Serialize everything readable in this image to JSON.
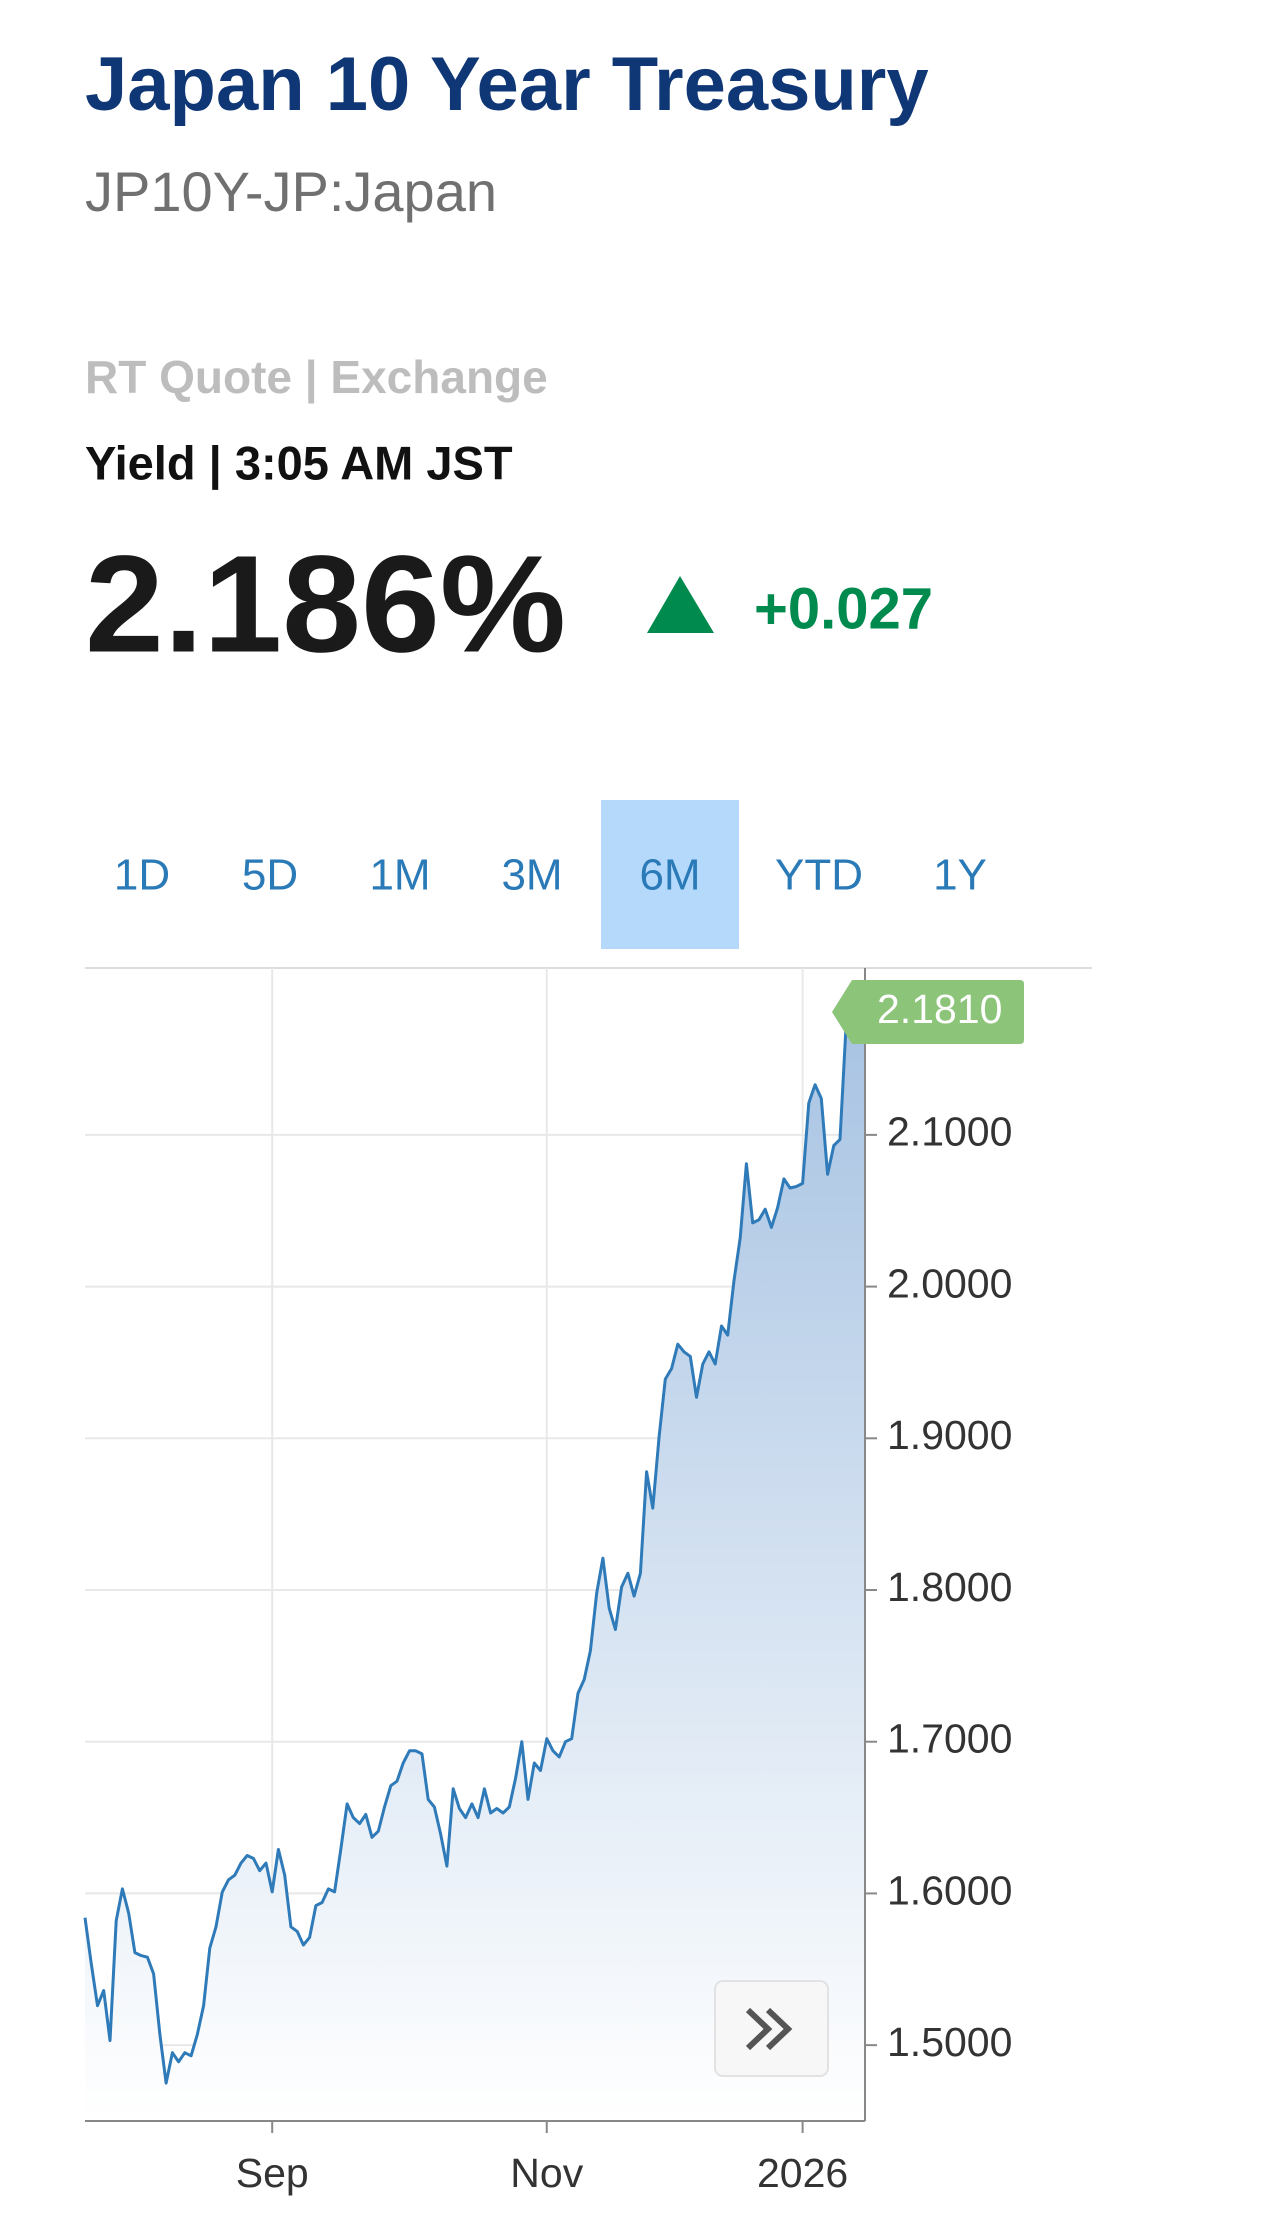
{
  "header": {
    "title": "Japan 10 Year Treasury",
    "symbol": "JP10Y-JP:Japan",
    "source": "RT Quote | Exchange",
    "timestamp": "Yield | 3:05 AM JST",
    "price": "2.186%",
    "change": "+0.027"
  },
  "tabs": {
    "items": [
      "1D",
      "5D",
      "1M",
      "3M",
      "6M",
      "YTD",
      "1Y"
    ],
    "active": "6M"
  },
  "chart_data": {
    "type": "line",
    "color": "#2f7ab8",
    "grid": true,
    "xlim": [
      0,
      125
    ],
    "xticks": [
      {
        "value": 30,
        "label": "Sep"
      },
      {
        "value": 74,
        "label": "Nov"
      },
      {
        "value": 115,
        "label": "2026"
      }
    ],
    "ylim": [
      1.45,
      2.21
    ],
    "yticks": [
      {
        "value": 1.5,
        "label": "1.5000"
      },
      {
        "value": 1.6,
        "label": "1.6000"
      },
      {
        "value": 1.7,
        "label": "1.7000"
      },
      {
        "value": 1.8,
        "label": "1.8000"
      },
      {
        "value": 1.9,
        "label": "1.9000"
      },
      {
        "value": 2.0,
        "label": "2.0000"
      },
      {
        "value": 2.1,
        "label": "2.1000"
      }
    ],
    "last_label": {
      "value": 2.181,
      "label": "2.1810"
    },
    "values": [
      1.584,
      1.554,
      1.526,
      1.536,
      1.503,
      1.582,
      1.603,
      1.587,
      1.561,
      1.559,
      1.558,
      1.547,
      1.507,
      1.475,
      1.495,
      1.489,
      1.495,
      1.493,
      1.507,
      1.526,
      1.564,
      1.578,
      1.601,
      1.609,
      1.612,
      1.62,
      1.625,
      1.623,
      1.615,
      1.62,
      1.601,
      1.629,
      1.612,
      1.578,
      1.575,
      1.566,
      1.571,
      1.592,
      1.594,
      1.603,
      1.601,
      1.629,
      1.659,
      1.65,
      1.646,
      1.652,
      1.637,
      1.641,
      1.657,
      1.671,
      1.674,
      1.686,
      1.694,
      1.694,
      1.692,
      1.662,
      1.657,
      1.639,
      1.618,
      1.669,
      1.656,
      1.65,
      1.659,
      1.65,
      1.669,
      1.653,
      1.656,
      1.653,
      1.657,
      1.676,
      1.7,
      1.662,
      1.686,
      1.681,
      1.702,
      1.694,
      1.69,
      1.7,
      1.702,
      1.732,
      1.741,
      1.76,
      1.798,
      1.821,
      1.788,
      1.774,
      1.802,
      1.811,
      1.796,
      1.811,
      1.878,
      1.854,
      1.901,
      1.939,
      1.946,
      1.962,
      1.957,
      1.954,
      1.927,
      1.949,
      1.957,
      1.949,
      1.974,
      1.968,
      2.004,
      2.032,
      2.081,
      2.042,
      2.044,
      2.051,
      2.039,
      2.052,
      2.071,
      2.065,
      2.066,
      2.068,
      2.121,
      2.133,
      2.124,
      2.074,
      2.093,
      2.097,
      2.175,
      2.187,
      2.175,
      2.181
    ]
  }
}
